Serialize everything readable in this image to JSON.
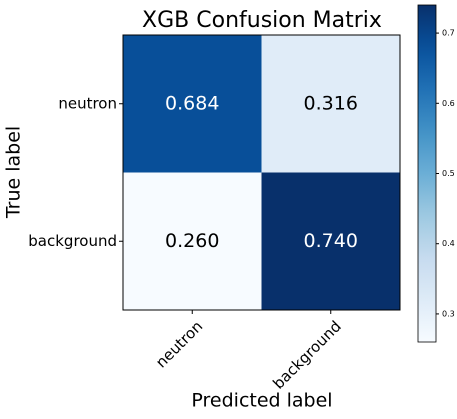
{
  "chart_data": {
    "type": "heatmap",
    "title": "XGB Confusion Matrix",
    "x_label": "Predicted label",
    "y_label": "True label",
    "x_categories": [
      "neutron",
      "background"
    ],
    "y_categories": [
      "neutron",
      "background"
    ],
    "values": [
      [
        0.684,
        0.316
      ],
      [
        0.26,
        0.74
      ]
    ],
    "value_labels": [
      [
        "0.684",
        "0.316"
      ],
      [
        "0.260",
        "0.740"
      ]
    ],
    "colormap": "Blues",
    "clim": [
      0.26,
      0.74
    ],
    "cticks": [
      0.3,
      0.4,
      0.5,
      0.6,
      0.7
    ]
  }
}
